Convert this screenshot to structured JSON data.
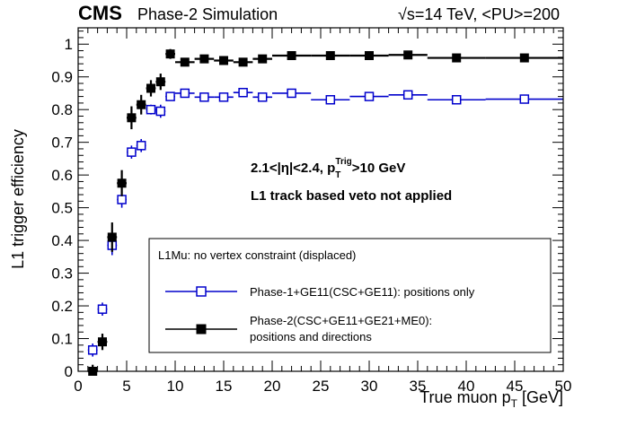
{
  "header": {
    "experiment": "CMS",
    "status": "Phase-2 Simulation",
    "energy": "√s=14 TeV, <PU>=200"
  },
  "annotations": {
    "selection_line1": "2.1<|η|<2.4, p",
    "selection_sub": "T",
    "selection_sup": "Trig",
    "selection_tail": ">10 GeV",
    "selection_line2": "L1 track based veto not applied"
  },
  "legend": {
    "header": "L1Mu: no vertex constraint (displaced)",
    "entry1": "Phase-1+GE11(CSC+GE11): positions only",
    "entry2_line1": "Phase-2(CSC+GE11+GE21+ME0):",
    "entry2_line2": "positions and directions"
  },
  "colors": {
    "phase1": "#0000cc",
    "phase2": "#000000"
  },
  "chart_data": {
    "type": "scatter",
    "ylabel": "L1 trigger efficiency",
    "xlabel_main": "True muon p",
    "xlabel_sub": "T",
    "xlabel_unit": " [GeV]",
    "xlim": [
      0,
      50
    ],
    "ylim": [
      0,
      1.05
    ],
    "x_ticks": [
      0,
      5,
      10,
      15,
      20,
      25,
      30,
      35,
      40,
      45,
      50
    ],
    "y_ticks": [
      0,
      0.1,
      0.2,
      0.3,
      0.4,
      0.5,
      0.6,
      0.7,
      0.8,
      0.9,
      1
    ],
    "y_tick_labels": [
      "0",
      "0.1",
      "0.2",
      "0.3",
      "0.4",
      "0.5",
      "0.6",
      "0.7",
      "0.8",
      "0.9",
      "1"
    ],
    "series": [
      {
        "name": "Phase-1+GE11(CSC+GE11): positions only",
        "marker": "open-square",
        "color": "#0000cc",
        "points": [
          {
            "x": 1.5,
            "xerr": 0.5,
            "y": 0.065,
            "yerr": 0.02
          },
          {
            "x": 2.5,
            "xerr": 0.5,
            "y": 0.19,
            "yerr": 0.02
          },
          {
            "x": 3.5,
            "xerr": 0.5,
            "y": 0.385,
            "yerr": 0.03
          },
          {
            "x": 4.5,
            "xerr": 0.5,
            "y": 0.525,
            "yerr": 0.025
          },
          {
            "x": 5.5,
            "xerr": 0.5,
            "y": 0.67,
            "yerr": 0.02
          },
          {
            "x": 6.5,
            "xerr": 0.5,
            "y": 0.69,
            "yerr": 0.02
          },
          {
            "x": 7.5,
            "xerr": 0.5,
            "y": 0.8,
            "yerr": 0.015
          },
          {
            "x": 8.5,
            "xerr": 0.5,
            "y": 0.795,
            "yerr": 0.02
          },
          {
            "x": 9.5,
            "xerr": 0.5,
            "y": 0.84,
            "yerr": 0.01
          },
          {
            "x": 11,
            "xerr": 1,
            "y": 0.85,
            "yerr": 0.01
          },
          {
            "x": 13,
            "xerr": 1,
            "y": 0.838,
            "yerr": 0.008
          },
          {
            "x": 15,
            "xerr": 1,
            "y": 0.838,
            "yerr": 0.008
          },
          {
            "x": 17,
            "xerr": 1,
            "y": 0.852,
            "yerr": 0.008
          },
          {
            "x": 19,
            "xerr": 1,
            "y": 0.838,
            "yerr": 0.008
          },
          {
            "x": 22,
            "xerr": 2,
            "y": 0.85,
            "yerr": 0.006
          },
          {
            "x": 26,
            "xerr": 2,
            "y": 0.83,
            "yerr": 0.006
          },
          {
            "x": 30,
            "xerr": 2,
            "y": 0.84,
            "yerr": 0.006
          },
          {
            "x": 34,
            "xerr": 2,
            "y": 0.845,
            "yerr": 0.006
          },
          {
            "x": 39,
            "xerr": 3,
            "y": 0.83,
            "yerr": 0.005
          },
          {
            "x": 46,
            "xerr": 4,
            "y": 0.832,
            "yerr": 0.005
          }
        ]
      },
      {
        "name": "Phase-2(CSC+GE11+GE21+ME0): positions and directions",
        "marker": "filled-square",
        "color": "#000000",
        "points": [
          {
            "x": 1.5,
            "xerr": 0.5,
            "y": 0.0,
            "yerr": 0.02
          },
          {
            "x": 2.5,
            "xerr": 0.5,
            "y": 0.09,
            "yerr": 0.025
          },
          {
            "x": 3.5,
            "xerr": 0.5,
            "y": 0.41,
            "yerr": 0.045
          },
          {
            "x": 4.5,
            "xerr": 0.5,
            "y": 0.575,
            "yerr": 0.04
          },
          {
            "x": 5.5,
            "xerr": 0.5,
            "y": 0.775,
            "yerr": 0.035
          },
          {
            "x": 6.5,
            "xerr": 0.5,
            "y": 0.815,
            "yerr": 0.03
          },
          {
            "x": 7.5,
            "xerr": 0.5,
            "y": 0.865,
            "yerr": 0.025
          },
          {
            "x": 8.5,
            "xerr": 0.5,
            "y": 0.885,
            "yerr": 0.025
          },
          {
            "x": 9.5,
            "xerr": 0.5,
            "y": 0.97,
            "yerr": 0.015
          },
          {
            "x": 11,
            "xerr": 1,
            "y": 0.945,
            "yerr": 0.012
          },
          {
            "x": 13,
            "xerr": 1,
            "y": 0.955,
            "yerr": 0.01
          },
          {
            "x": 15,
            "xerr": 1,
            "y": 0.95,
            "yerr": 0.01
          },
          {
            "x": 17,
            "xerr": 1,
            "y": 0.945,
            "yerr": 0.01
          },
          {
            "x": 19,
            "xerr": 1,
            "y": 0.955,
            "yerr": 0.008
          },
          {
            "x": 22,
            "xerr": 2,
            "y": 0.965,
            "yerr": 0.007
          },
          {
            "x": 26,
            "xerr": 2,
            "y": 0.965,
            "yerr": 0.007
          },
          {
            "x": 30,
            "xerr": 2,
            "y": 0.965,
            "yerr": 0.006
          },
          {
            "x": 34,
            "xerr": 2,
            "y": 0.967,
            "yerr": 0.006
          },
          {
            "x": 39,
            "xerr": 3,
            "y": 0.958,
            "yerr": 0.005
          },
          {
            "x": 46,
            "xerr": 4,
            "y": 0.958,
            "yerr": 0.005
          }
        ]
      }
    ]
  }
}
